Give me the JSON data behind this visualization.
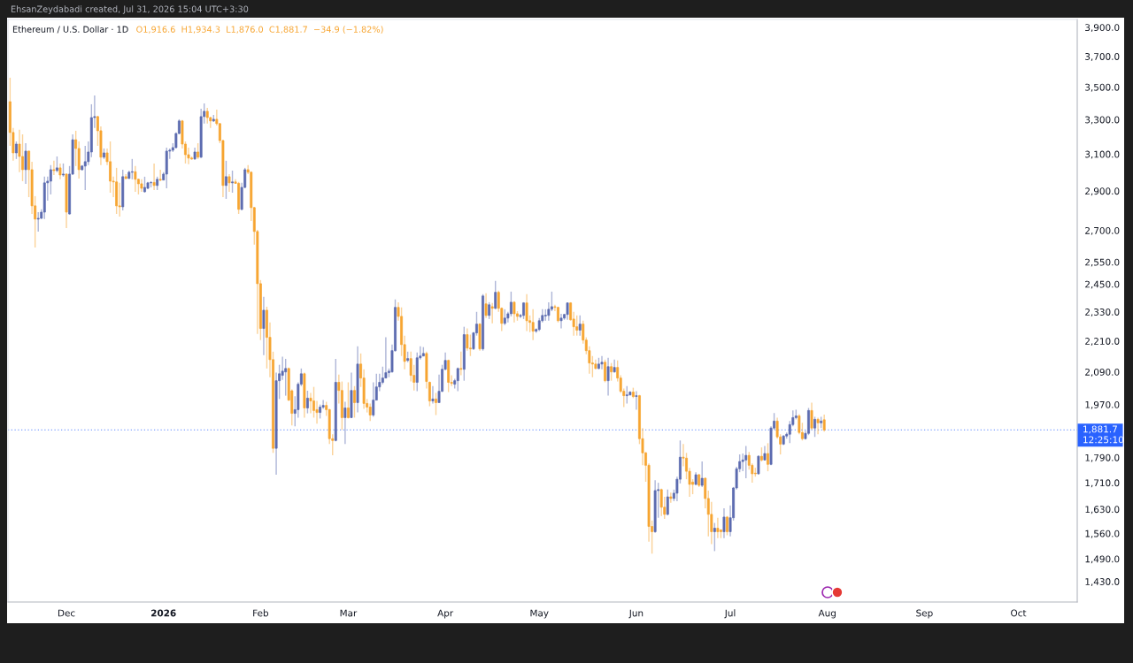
{
  "chart_data": {
    "type": "candlestick",
    "title": "Ethereum / U.S. Dollar · 1D",
    "subtitle": "O1,916.6  H1,934.3  L1,876.0  C1,881.7  −34.9 (−1.82%)",
    "annotations": [
      "EhsanZeydabadi created, Jul 31, 2026 15:04 UTC+3:30",
      "12:25:10"
    ],
    "log": true,
    "xlim": [
      "2025-11-12T08:00",
      "2026-10-19T19:00"
    ],
    "xticks": [
      {
        "value": "2025-12-01",
        "label": "Dec"
      },
      {
        "value": "2026-01-01",
        "label": "2026"
      },
      {
        "value": "2026-02-01",
        "label": "Feb"
      },
      {
        "value": "2026-03-01",
        "label": "Mar"
      },
      {
        "value": "2026-04-01",
        "label": "Apr"
      },
      {
        "value": "2026-05-01",
        "label": "May"
      },
      {
        "value": "2026-06-01",
        "label": "Jun"
      },
      {
        "value": "2026-07-01",
        "label": "Jul"
      },
      {
        "value": "2026-08-01",
        "label": "Aug"
      },
      {
        "value": "2026-09-01",
        "label": "Sep"
      },
      {
        "value": "2026-10-01",
        "label": "Oct"
      }
    ],
    "ylim": [
      1378,
      3956
    ],
    "yticks": [
      {
        "value": 1430,
        "label": "1,430.0"
      },
      {
        "value": 1490,
        "label": "1,490.0"
      },
      {
        "value": 1560,
        "label": "1,560.0"
      },
      {
        "value": 1630,
        "label": "1,630.0"
      },
      {
        "value": 1710,
        "label": "1,710.0"
      },
      {
        "value": 1790,
        "label": "1,790.0"
      },
      {
        "value": 1970,
        "label": "1,970.0"
      },
      {
        "value": 2090,
        "label": "2,090.0"
      },
      {
        "value": 2210,
        "label": "2,210.0"
      },
      {
        "value": 2330,
        "label": "2,330.0"
      },
      {
        "value": 2450,
        "label": "2,450.0"
      },
      {
        "value": 2550,
        "label": "2,550.0"
      },
      {
        "value": 2700,
        "label": "2,700.0"
      },
      {
        "value": 2900,
        "label": "2,900.0"
      },
      {
        "value": 3100,
        "label": "3,100.0"
      },
      {
        "value": 3300,
        "label": "3,300.0"
      },
      {
        "value": 3500,
        "label": "3,500.0"
      },
      {
        "value": 3700,
        "label": "3,700.0"
      },
      {
        "value": 3900,
        "label": "3,900.0"
      }
    ],
    "ref_lines": [
      {
        "axis": "y",
        "value": 1881.7,
        "label": "1,881.7",
        "color": "#2962ff",
        "line_style": "dotted"
      }
    ],
    "x": [
      "2025-11-13",
      "2025-11-14",
      "2025-11-15",
      "2025-11-16",
      "2025-11-17",
      "2025-11-18",
      "2025-11-19",
      "2025-11-20",
      "2025-11-21",
      "2025-11-22",
      "2025-11-23",
      "2025-11-24",
      "2025-11-25",
      "2025-11-26",
      "2025-11-27",
      "2025-11-28",
      "2025-11-29",
      "2025-11-30",
      "2025-12-01",
      "2025-12-02",
      "2025-12-03",
      "2025-12-04",
      "2025-12-05",
      "2025-12-06",
      "2025-12-07",
      "2025-12-08",
      "2025-12-09",
      "2025-12-10",
      "2025-12-11",
      "2025-12-12",
      "2025-12-13",
      "2025-12-14",
      "2025-12-15",
      "2025-12-16",
      "2025-12-17",
      "2025-12-18",
      "2025-12-19",
      "2025-12-20",
      "2025-12-21",
      "2025-12-22",
      "2025-12-23",
      "2025-12-24",
      "2025-12-25",
      "2025-12-26",
      "2025-12-27",
      "2025-12-28",
      "2025-12-29",
      "2025-12-30",
      "2025-12-31",
      "2026-01-01",
      "2026-01-02",
      "2026-01-03",
      "2026-01-04",
      "2026-01-05",
      "2026-01-06",
      "2026-01-07",
      "2026-01-08",
      "2026-01-09",
      "2026-01-10",
      "2026-01-11",
      "2026-01-12",
      "2026-01-13",
      "2026-01-14",
      "2026-01-15",
      "2026-01-16",
      "2026-01-17",
      "2026-01-18",
      "2026-01-19",
      "2026-01-20",
      "2026-01-21",
      "2026-01-22",
      "2026-01-23",
      "2026-01-24",
      "2026-01-25",
      "2026-01-26",
      "2026-01-27",
      "2026-01-28",
      "2026-01-29",
      "2026-01-30",
      "2026-01-31",
      "2026-02-01",
      "2026-02-02",
      "2026-02-03",
      "2026-02-04",
      "2026-02-05",
      "2026-02-06",
      "2026-02-07",
      "2026-02-08",
      "2026-02-09",
      "2026-02-10",
      "2026-02-11",
      "2026-02-12",
      "2026-02-13",
      "2026-02-14",
      "2026-02-15",
      "2026-02-16",
      "2026-02-17",
      "2026-02-18",
      "2026-02-19",
      "2026-02-20",
      "2026-02-21",
      "2026-02-22",
      "2026-02-23",
      "2026-02-24",
      "2026-02-25",
      "2026-02-26",
      "2026-02-27",
      "2026-02-28",
      "2026-03-01",
      "2026-03-02",
      "2026-03-03",
      "2026-03-04",
      "2026-03-05",
      "2026-03-06",
      "2026-03-07",
      "2026-03-08",
      "2026-03-09",
      "2026-03-10",
      "2026-03-11",
      "2026-03-12",
      "2026-03-13",
      "2026-03-14",
      "2026-03-15",
      "2026-03-16",
      "2026-03-17",
      "2026-03-18",
      "2026-03-19",
      "2026-03-20",
      "2026-03-21",
      "2026-03-22",
      "2026-03-23",
      "2026-03-24",
      "2026-03-25",
      "2026-03-26",
      "2026-03-27",
      "2026-03-28",
      "2026-03-29",
      "2026-03-30",
      "2026-03-31",
      "2026-04-01",
      "2026-04-02",
      "2026-04-03",
      "2026-04-04",
      "2026-04-05",
      "2026-04-06",
      "2026-04-07",
      "2026-04-08",
      "2026-04-09",
      "2026-04-10",
      "2026-04-11",
      "2026-04-12",
      "2026-04-13",
      "2026-04-14",
      "2026-04-15",
      "2026-04-16",
      "2026-04-17",
      "2026-04-18",
      "2026-04-19",
      "2026-04-20",
      "2026-04-21",
      "2026-04-22",
      "2026-04-23",
      "2026-04-24",
      "2026-04-25",
      "2026-04-26",
      "2026-04-27",
      "2026-04-28",
      "2026-04-29",
      "2026-04-30",
      "2026-05-01",
      "2026-05-02",
      "2026-05-03",
      "2026-05-04",
      "2026-05-05",
      "2026-05-06",
      "2026-05-07",
      "2026-05-08",
      "2026-05-09",
      "2026-05-10",
      "2026-05-11",
      "2026-05-12",
      "2026-05-13",
      "2026-05-14",
      "2026-05-15",
      "2026-05-16",
      "2026-05-17",
      "2026-05-18",
      "2026-05-19",
      "2026-05-20",
      "2026-05-21",
      "2026-05-22",
      "2026-05-23",
      "2026-05-24",
      "2026-05-25",
      "2026-05-26",
      "2026-05-27",
      "2026-05-28",
      "2026-05-29",
      "2026-05-30",
      "2026-05-31",
      "2026-06-01",
      "2026-06-02",
      "2026-06-03",
      "2026-06-04",
      "2026-06-05",
      "2026-06-06",
      "2026-06-07",
      "2026-06-08",
      "2026-06-09",
      "2026-06-10",
      "2026-06-11",
      "2026-06-12",
      "2026-06-13",
      "2026-06-14",
      "2026-06-15",
      "2026-06-16",
      "2026-06-17",
      "2026-06-18",
      "2026-06-19",
      "2026-06-20",
      "2026-06-21",
      "2026-06-22",
      "2026-06-23",
      "2026-06-24",
      "2026-06-25",
      "2026-06-26",
      "2026-06-27",
      "2026-06-28",
      "2026-06-29",
      "2026-06-30",
      "2026-07-01",
      "2026-07-02",
      "2026-07-03",
      "2026-07-04",
      "2026-07-05",
      "2026-07-06",
      "2026-07-07",
      "2026-07-08",
      "2026-07-09",
      "2026-07-10",
      "2026-07-11",
      "2026-07-12",
      "2026-07-13",
      "2026-07-14",
      "2026-07-15",
      "2026-07-16",
      "2026-07-17",
      "2026-07-18",
      "2026-07-19",
      "2026-07-20",
      "2026-07-21",
      "2026-07-22",
      "2026-07-23",
      "2026-07-24",
      "2026-07-25",
      "2026-07-26",
      "2026-07-27",
      "2026-07-28",
      "2026-07-29",
      "2026-07-30",
      "2026-07-31"
    ],
    "ohlc": [
      [
        3409,
        3560,
        3147,
        3224
      ],
      [
        3224,
        3250,
        3063,
        3107
      ],
      [
        3107,
        3172,
        3073,
        3157
      ],
      [
        3157,
        3240,
        3000,
        3087
      ],
      [
        3087,
        3213,
        2952,
        3014
      ],
      [
        3014,
        3162,
        2938,
        3117
      ],
      [
        3117,
        3120,
        2868,
        3014
      ],
      [
        3014,
        3058,
        2782,
        2823
      ],
      [
        2823,
        2873,
        2618,
        2756
      ],
      [
        2756,
        2791,
        2694,
        2760
      ],
      [
        2760,
        2805,
        2756,
        2791
      ],
      [
        2791,
        2976,
        2756,
        2943
      ],
      [
        2943,
        2976,
        2850,
        2952
      ],
      [
        2952,
        3039,
        2882,
        3014
      ],
      [
        3014,
        3063,
        2985,
        3009
      ],
      [
        3009,
        3087,
        3000,
        3024
      ],
      [
        3024,
        3048,
        2962,
        2985
      ],
      [
        2985,
        3048,
        2976,
        2990
      ],
      [
        2990,
        2995,
        2712,
        2791
      ],
      [
        2782,
        3034,
        2778,
        2990
      ],
      [
        2990,
        3213,
        2985,
        3182
      ],
      [
        3182,
        3234,
        3034,
        3132
      ],
      [
        3132,
        3172,
        2966,
        3014
      ],
      [
        3014,
        3039,
        3009,
        3034
      ],
      [
        3034,
        3147,
        2905,
        3058
      ],
      [
        3058,
        3172,
        3039,
        3112
      ],
      [
        3112,
        3393,
        3083,
        3312
      ],
      [
        3312,
        3448,
        3250,
        3318
      ],
      [
        3318,
        3323,
        3147,
        3234
      ],
      [
        3234,
        3260,
        3039,
        3083
      ],
      [
        3083,
        3132,
        3073,
        3107
      ],
      [
        3107,
        3132,
        3039,
        3058
      ],
      [
        3058,
        3172,
        2891,
        2952
      ],
      [
        2952,
        2976,
        2868,
        2948
      ],
      [
        2948,
        3024,
        2782,
        2823
      ],
      [
        2823,
        2943,
        2769,
        2818
      ],
      [
        2818,
        3014,
        2800,
        2976
      ],
      [
        2976,
        2990,
        2962,
        2966
      ],
      [
        2966,
        3009,
        2966,
        3000
      ],
      [
        3000,
        3073,
        2962,
        3003
      ],
      [
        3003,
        3034,
        2896,
        2962
      ],
      [
        2962,
        2966,
        2882,
        2938
      ],
      [
        2938,
        2962,
        2896,
        2914
      ],
      [
        2896,
        2976,
        2891,
        2919
      ],
      [
        2914,
        2948,
        2910,
        2943
      ],
      [
        2943,
        2952,
        2919,
        2945
      ],
      [
        2945,
        3048,
        2905,
        2929
      ],
      [
        2929,
        2976,
        2905,
        2962
      ],
      [
        2962,
        3014,
        2952,
        2958
      ],
      [
        2958,
        3000,
        2958,
        2990
      ],
      [
        2990,
        3137,
        2914,
        3117
      ],
      [
        3117,
        3132,
        3073,
        3122
      ],
      [
        3122,
        3162,
        3112,
        3137
      ],
      [
        3137,
        3224,
        3132,
        3218
      ],
      [
        3218,
        3302,
        3213,
        3292
      ],
      [
        3292,
        3297,
        3132,
        3157
      ],
      [
        3157,
        3172,
        3048,
        3097
      ],
      [
        3097,
        3137,
        3044,
        3078
      ],
      [
        3078,
        3087,
        3068,
        3073
      ],
      [
        3073,
        3137,
        3068,
        3112
      ],
      [
        3112,
        3162,
        3073,
        3083
      ],
      [
        3083,
        3366,
        3078,
        3318
      ],
      [
        3318,
        3398,
        3276,
        3350
      ],
      [
        3350,
        3371,
        3276,
        3312
      ],
      [
        3312,
        3318,
        3250,
        3292
      ],
      [
        3292,
        3328,
        3286,
        3302
      ],
      [
        3302,
        3360,
        3265,
        3276
      ],
      [
        3276,
        3280,
        3162,
        3177
      ],
      [
        3177,
        3182,
        2868,
        2929
      ],
      [
        2929,
        3063,
        2859,
        2976
      ],
      [
        2976,
        2990,
        2896,
        2943
      ],
      [
        2943,
        3009,
        2891,
        2948
      ],
      [
        2948,
        2962,
        2938,
        2940
      ],
      [
        2940,
        2948,
        2782,
        2805
      ],
      [
        2805,
        2943,
        2800,
        2919
      ],
      [
        2919,
        3024,
        2914,
        3014
      ],
      [
        3014,
        3039,
        2990,
        3000
      ],
      [
        3000,
        3005,
        2747,
        2814
      ],
      [
        2814,
        2818,
        2631,
        2695
      ],
      [
        2695,
        2703,
        2239,
        2452
      ],
      [
        2452,
        2468,
        2214,
        2261
      ],
      [
        2261,
        2394,
        2154,
        2337
      ],
      [
        2337,
        2352,
        2103,
        2225
      ],
      [
        2225,
        2286,
        2070,
        2137
      ],
      [
        2137,
        2168,
        1805,
        1820
      ],
      [
        1820,
        2087,
        1735,
        2057
      ],
      [
        2057,
        2117,
        1990,
        2083
      ],
      [
        2077,
        2148,
        2060,
        2093
      ],
      [
        2090,
        2140,
        2002,
        2103
      ],
      [
        2103,
        2107,
        1983,
        1986
      ],
      [
        2020,
        2025,
        1897,
        1939
      ],
      [
        1939,
        2000,
        1894,
        1952
      ],
      [
        1952,
        2051,
        1924,
        2044
      ],
      [
        2044,
        2103,
        2037,
        2083
      ],
      [
        2083,
        2087,
        1924,
        1958
      ],
      [
        1958,
        2020,
        1939,
        1993
      ],
      [
        1993,
        2012,
        1939,
        1983
      ],
      [
        1983,
        2034,
        1924,
        1949
      ],
      [
        1952,
        1983,
        1903,
        1942
      ],
      [
        1942,
        1970,
        1921,
        1961
      ],
      [
        1961,
        1986,
        1955,
        1967
      ],
      [
        1967,
        1980,
        1930,
        1952
      ],
      [
        1952,
        1955,
        1834,
        1852
      ],
      [
        1852,
        1867,
        1797,
        1846
      ],
      [
        1846,
        2140,
        1843,
        2051
      ],
      [
        2051,
        2080,
        1974,
        2021
      ],
      [
        2021,
        2054,
        1882,
        1924
      ],
      [
        1924,
        1980,
        1834,
        1958
      ],
      [
        1958,
        2051,
        1921,
        1924
      ],
      [
        1924,
        2087,
        1924,
        2021
      ],
      [
        2021,
        2037,
        1924,
        1977
      ],
      [
        1977,
        2189,
        1942,
        2120
      ],
      [
        2120,
        2161,
        2034,
        2067
      ],
      [
        2067,
        2100,
        1955,
        1974
      ],
      [
        1974,
        1990,
        1942,
        1961
      ],
      [
        1961,
        1974,
        1912,
        1933
      ],
      [
        1933,
        2051,
        1927,
        1986
      ],
      [
        1986,
        2083,
        1986,
        2034
      ],
      [
        2034,
        2083,
        2018,
        2051
      ],
      [
        2051,
        2110,
        2044,
        2067
      ],
      [
        2067,
        2225,
        2067,
        2087
      ],
      [
        2087,
        2103,
        2070,
        2093
      ],
      [
        2090,
        2196,
        2087,
        2172
      ],
      [
        2172,
        2383,
        2168,
        2349
      ],
      [
        2349,
        2371,
        2293,
        2311
      ],
      [
        2311,
        2349,
        2151,
        2196
      ],
      [
        2196,
        2232,
        2100,
        2130
      ],
      [
        2134,
        2168,
        2127,
        2141
      ],
      [
        2141,
        2168,
        2054,
        2077
      ],
      [
        2077,
        2117,
        2021,
        2051
      ],
      [
        2051,
        2165,
        2018,
        2144
      ],
      [
        2144,
        2189,
        2137,
        2151
      ],
      [
        2151,
        2186,
        2151,
        2161
      ],
      [
        2161,
        2168,
        2028,
        2054
      ],
      [
        2051,
        2054,
        1964,
        1983
      ],
      [
        1983,
        2037,
        1974,
        1990
      ],
      [
        1990,
        2012,
        1933,
        1977
      ],
      [
        1977,
        2080,
        1977,
        2018
      ],
      [
        2018,
        2117,
        2015,
        2100
      ],
      [
        2100,
        2165,
        2097,
        2134
      ],
      [
        2134,
        2137,
        2015,
        2051
      ],
      [
        2051,
        2077,
        2037,
        2047
      ],
      [
        2044,
        2064,
        2028,
        2057
      ],
      [
        2057,
        2107,
        2018,
        2103
      ],
      [
        2103,
        2168,
        2077,
        2100
      ],
      [
        2100,
        2268,
        2057,
        2236
      ],
      [
        2236,
        2261,
        2172,
        2182
      ],
      [
        2182,
        2236,
        2151,
        2179
      ],
      [
        2179,
        2247,
        2175,
        2243
      ],
      [
        2243,
        2330,
        2232,
        2279
      ],
      [
        2279,
        2283,
        2172,
        2179
      ],
      [
        2179,
        2406,
        2172,
        2398
      ],
      [
        2364,
        2410,
        2304,
        2315
      ],
      [
        2315,
        2371,
        2300,
        2360
      ],
      [
        2352,
        2368,
        2282,
        2345
      ],
      [
        2345,
        2464,
        2341,
        2414
      ],
      [
        2414,
        2421,
        2330,
        2345
      ],
      [
        2345,
        2349,
        2250,
        2282
      ],
      [
        2282,
        2341,
        2275,
        2304
      ],
      [
        2304,
        2330,
        2286,
        2322
      ],
      [
        2322,
        2417,
        2311,
        2371
      ],
      [
        2371,
        2375,
        2286,
        2322
      ],
      [
        2322,
        2333,
        2293,
        2311
      ],
      [
        2311,
        2322,
        2304,
        2315
      ],
      [
        2315,
        2371,
        2300,
        2368
      ],
      [
        2368,
        2406,
        2250,
        2293
      ],
      [
        2293,
        2315,
        2246,
        2286
      ],
      [
        2286,
        2341,
        2214,
        2250
      ],
      [
        2250,
        2261,
        2243,
        2257
      ],
      [
        2257,
        2304,
        2250,
        2293
      ],
      [
        2293,
        2341,
        2286,
        2315
      ],
      [
        2313,
        2341,
        2293,
        2316
      ],
      [
        2315,
        2371,
        2293,
        2341
      ],
      [
        2341,
        2417,
        2333,
        2352
      ],
      [
        2352,
        2360,
        2333,
        2349
      ],
      [
        2349,
        2352,
        2286,
        2293
      ],
      [
        2293,
        2322,
        2261,
        2304
      ],
      [
        2304,
        2322,
        2297,
        2319
      ],
      [
        2319,
        2371,
        2297,
        2368
      ],
      [
        2368,
        2371,
        2293,
        2297
      ],
      [
        2300,
        2330,
        2232,
        2268
      ],
      [
        2268,
        2315,
        2232,
        2254
      ],
      [
        2254,
        2315,
        2232,
        2279
      ],
      [
        2279,
        2293,
        2200,
        2214
      ],
      [
        2214,
        2225,
        2158,
        2172
      ],
      [
        2172,
        2189,
        2083,
        2124
      ],
      [
        2124,
        2151,
        2070,
        2120
      ],
      [
        2120,
        2137,
        2100,
        2103
      ],
      [
        2103,
        2144,
        2100,
        2120
      ],
      [
        2120,
        2151,
        2100,
        2127
      ],
      [
        2127,
        2137,
        2051,
        2057
      ],
      [
        2057,
        2144,
        2002,
        2110
      ],
      [
        2110,
        2124,
        2057,
        2090
      ],
      [
        2090,
        2137,
        2087,
        2107
      ],
      [
        2107,
        2134,
        2054,
        2067
      ],
      [
        2067,
        2077,
        2012,
        2018
      ],
      [
        2018,
        2028,
        1961,
        2002
      ],
      [
        2002,
        2037,
        1974,
        2005
      ],
      [
        2005,
        2018,
        2002,
        2015
      ],
      [
        2015,
        2031,
        1993,
        1999
      ],
      [
        1999,
        2018,
        1952,
        2002
      ],
      [
        2002,
        2005,
        1834,
        1852
      ],
      [
        1852,
        1888,
        1765,
        1805
      ],
      [
        1805,
        1808,
        1713,
        1765
      ],
      [
        1765,
        1771,
        1537,
        1580
      ],
      [
        1580,
        1597,
        1504,
        1565
      ],
      [
        1565,
        1718,
        1562,
        1686
      ],
      [
        1686,
        1710,
        1605,
        1689
      ],
      [
        1689,
        1692,
        1610,
        1636
      ],
      [
        1636,
        1667,
        1602,
        1615
      ],
      [
        1615,
        1689,
        1612,
        1667
      ],
      [
        1667,
        1680,
        1649,
        1662
      ],
      [
        1662,
        1689,
        1654,
        1678
      ],
      [
        1678,
        1729,
        1654,
        1721
      ],
      [
        1721,
        1846,
        1708,
        1791
      ],
      [
        1791,
        1834,
        1762,
        1788
      ],
      [
        1788,
        1805,
        1721,
        1746
      ],
      [
        1746,
        1757,
        1667,
        1705
      ],
      [
        1712,
        1721,
        1675,
        1705
      ],
      [
        1705,
        1743,
        1702,
        1735
      ],
      [
        1735,
        1738,
        1697,
        1702
      ],
      [
        1702,
        1777,
        1697,
        1724
      ],
      [
        1724,
        1727,
        1633,
        1662
      ],
      [
        1662,
        1686,
        1552,
        1615
      ],
      [
        1615,
        1652,
        1530,
        1565
      ],
      [
        1565,
        1590,
        1511,
        1575
      ],
      [
        1575,
        1605,
        1547,
        1565
      ],
      [
        1570,
        1572,
        1547,
        1565
      ],
      [
        1565,
        1633,
        1547,
        1607
      ],
      [
        1607,
        1610,
        1555,
        1565
      ],
      [
        1565,
        1641,
        1552,
        1605
      ],
      [
        1605,
        1697,
        1597,
        1694
      ],
      [
        1694,
        1760,
        1689,
        1754
      ],
      [
        1754,
        1800,
        1743,
        1777
      ],
      [
        1777,
        1803,
        1746,
        1782
      ],
      [
        1782,
        1828,
        1724,
        1797
      ],
      [
        1797,
        1808,
        1751,
        1765
      ],
      [
        1765,
        1771,
        1710,
        1738
      ],
      [
        1740,
        1757,
        1729,
        1738
      ],
      [
        1738,
        1797,
        1735,
        1794
      ],
      [
        1794,
        1823,
        1777,
        1782
      ],
      [
        1782,
        1828,
        1780,
        1803
      ],
      [
        1803,
        1837,
        1746,
        1768
      ],
      [
        1768,
        1894,
        1765,
        1888
      ],
      [
        1888,
        1940,
        1882,
        1912
      ],
      [
        1912,
        1924,
        1852,
        1858
      ],
      [
        1858,
        1867,
        1800,
        1834
      ],
      [
        1834,
        1864,
        1831,
        1861
      ],
      [
        1861,
        1873,
        1852,
        1867
      ],
      [
        1867,
        1912,
        1837,
        1900
      ],
      [
        1900,
        1949,
        1894,
        1924
      ],
      [
        1924,
        1952,
        1918,
        1930
      ],
      [
        1930,
        1936,
        1867,
        1873
      ],
      [
        1873,
        1906,
        1846,
        1852
      ],
      [
        1852,
        1879,
        1849,
        1870
      ],
      [
        1870,
        1958,
        1864,
        1949
      ],
      [
        1949,
        1977,
        1882,
        1888
      ],
      [
        1888,
        1927,
        1858,
        1918
      ],
      [
        1918,
        1924,
        1867,
        1906
      ],
      [
        1906,
        1927,
        1888,
        1912
      ],
      [
        1916.6,
        1934.3,
        1876.0,
        1881.7
      ]
    ],
    "colors": [
      "#f7a531",
      "#f7a531",
      "#5c6bb0",
      "#f7a531",
      "#f7a531",
      "#5c6bb0",
      "#f7a531",
      "#f7a531",
      "#f7a531",
      "#5c6bb0",
      "#5c6bb0",
      "#5c6bb0",
      "#5c6bb0",
      "#5c6bb0",
      "#f7a531",
      "#5c6bb0",
      "#f7a531",
      "#5c6bb0",
      "#f7a531",
      "#5c6bb0",
      "#5c6bb0",
      "#f7a531",
      "#f7a531",
      "#5c6bb0",
      "#5c6bb0",
      "#5c6bb0",
      "#5c6bb0",
      "#5c6bb0",
      "#f7a531",
      "#f7a531",
      "#5c6bb0",
      "#f7a531",
      "#f7a531",
      "#f7a531",
      "#f7a531",
      "#f7a531",
      "#5c6bb0",
      "#f7a531",
      "#5c6bb0",
      "#5c6bb0",
      "#f7a531",
      "#f7a531",
      "#f7a531",
      "#5c6bb0",
      "#5c6bb0",
      "#5c6bb0",
      "#f7a531",
      "#5c6bb0",
      "#f7a531",
      "#5c6bb0",
      "#5c6bb0",
      "#5c6bb0",
      "#5c6bb0",
      "#5c6bb0",
      "#5c6bb0",
      "#f7a531",
      "#f7a531",
      "#f7a531",
      "#f7a531",
      "#5c6bb0",
      "#f7a531",
      "#5c6bb0",
      "#5c6bb0",
      "#f7a531",
      "#f7a531",
      "#5c6bb0",
      "#f7a531",
      "#f7a531",
      "#f7a531",
      "#5c6bb0",
      "#f7a531",
      "#5c6bb0",
      "#f7a531",
      "#f7a531",
      "#5c6bb0",
      "#5c6bb0",
      "#f7a531",
      "#f7a531",
      "#f7a531",
      "#f7a531",
      "#f7a531",
      "#5c6bb0",
      "#f7a531",
      "#f7a531",
      "#f7a531",
      "#5c6bb0",
      "#5c6bb0",
      "#5c6bb0",
      "#5c6bb0",
      "#f7a531",
      "#f7a531",
      "#5c6bb0",
      "#5c6bb0",
      "#5c6bb0",
      "#f7a531",
      "#5c6bb0",
      "#f7a531",
      "#f7a531",
      "#f7a531",
      "#5c6bb0",
      "#5c6bb0",
      "#f7a531",
      "#f7a531",
      "#f7a531",
      "#5c6bb0",
      "#f7a531",
      "#f7a531",
      "#5c6bb0",
      "#f7a531",
      "#5c6bb0",
      "#f7a531",
      "#5c6bb0",
      "#f7a531",
      "#f7a531",
      "#f7a531",
      "#f7a531",
      "#5c6bb0",
      "#5c6bb0",
      "#5c6bb0",
      "#5c6bb0",
      "#5c6bb0",
      "#5c6bb0",
      "#5c6bb0",
      "#5c6bb0",
      "#f7a531",
      "#f7a531",
      "#f7a531",
      "#5c6bb0",
      "#f7a531",
      "#f7a531",
      "#5c6bb0",
      "#5c6bb0",
      "#5c6bb0",
      "#f7a531",
      "#f7a531",
      "#5c6bb0",
      "#f7a531",
      "#5c6bb0",
      "#5c6bb0",
      "#5c6bb0",
      "#f7a531",
      "#f7a531",
      "#5c6bb0",
      "#5c6bb0",
      "#f7a531",
      "#5c6bb0",
      "#f7a531",
      "#f7a531",
      "#5c6bb0",
      "#5c6bb0",
      "#f7a531",
      "#5c6bb0",
      "#f7a531",
      "#5c6bb0",
      "#f7a531",
      "#5c6bb0",
      "#f7a531",
      "#f7a531",
      "#5c6bb0",
      "#5c6bb0",
      "#5c6bb0",
      "#f7a531",
      "#f7a531",
      "#5c6bb0",
      "#5c6bb0",
      "#f7a531",
      "#f7a531",
      "#f7a531",
      "#5c6bb0",
      "#5c6bb0",
      "#5c6bb0",
      "#5c6bb0",
      "#5c6bb0",
      "#5c6bb0",
      "#f7a531",
      "#f7a531",
      "#5c6bb0",
      "#5c6bb0",
      "#5c6bb0",
      "#f7a531",
      "#f7a531",
      "#f7a531",
      "#5c6bb0",
      "#f7a531",
      "#f7a531",
      "#f7a531",
      "#f7a531",
      "#f7a531",
      "#5c6bb0",
      "#5c6bb0",
      "#f7a531",
      "#5c6bb0",
      "#f7a531",
      "#5c6bb0",
      "#f7a531",
      "#f7a531",
      "#f7a531",
      "#5c6bb0",
      "#5c6bb0",
      "#f7a531",
      "#5c6bb0",
      "#f7a531",
      "#f7a531",
      "#f7a531",
      "#f7a531",
      "#f7a531",
      "#5c6bb0",
      "#5c6bb0",
      "#f7a531",
      "#f7a531",
      "#5c6bb0",
      "#f7a531",
      "#5c6bb0",
      "#5c6bb0",
      "#5c6bb0",
      "#f7a531",
      "#f7a531",
      "#f7a531",
      "#f7a531",
      "#5c6bb0",
      "#f7a531",
      "#5c6bb0",
      "#f7a531",
      "#f7a531",
      "#f7a531",
      "#5c6bb0",
      "#f7a531",
      "#f7a531",
      "#5c6bb0",
      "#f7a531",
      "#5c6bb0",
      "#5c6bb0",
      "#5c6bb0",
      "#5c6bb0",
      "#5c6bb0",
      "#5c6bb0",
      "#f7a531",
      "#f7a531",
      "#f7a531",
      "#5c6bb0",
      "#f7a531",
      "#5c6bb0",
      "#f7a531",
      "#5c6bb0",
      "#5c6bb0",
      "#f7a531",
      "#f7a531",
      "#5c6bb0",
      "#5c6bb0",
      "#5c6bb0",
      "#5c6bb0",
      "#5c6bb0",
      "#f7a531",
      "#f7a531",
      "#5c6bb0",
      "#5c6bb0",
      "#f7a531",
      "#5c6bb0",
      "#f7a531",
      "#5c6bb0",
      "#f7a531"
    ]
  }
}
